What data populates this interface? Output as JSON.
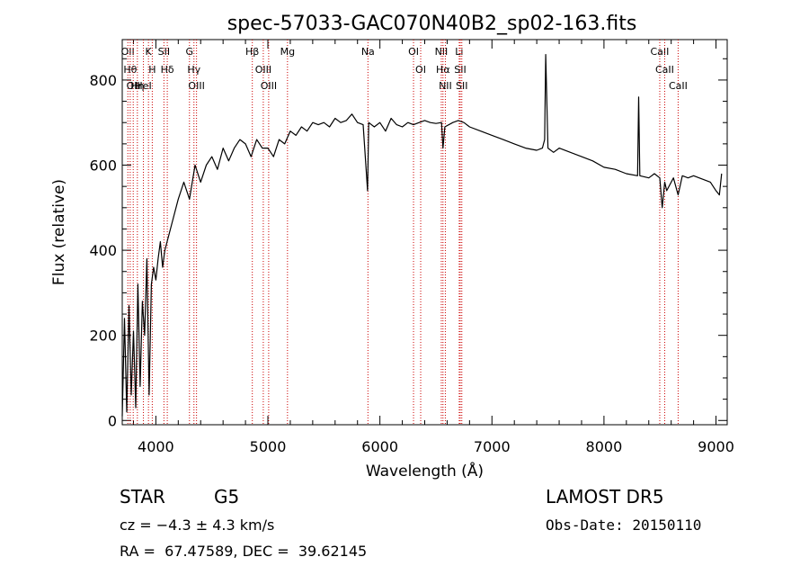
{
  "chart_data": {
    "type": "line",
    "title": "spec-57033-GAC070N40B2_sp02-163.fits",
    "xlabel": "Wavelength (Å)",
    "ylabel": "Flux (relative)",
    "xlim": [
      3700,
      9100
    ],
    "ylim": [
      -10,
      895
    ],
    "xticks": [
      4000,
      5000,
      6000,
      7000,
      8000,
      9000
    ],
    "yticks": [
      0,
      200,
      400,
      600,
      800
    ],
    "grid": false,
    "line_color": "#000000",
    "marker_color": "#cc0000",
    "series": [
      {
        "x": [
          3700,
          3720,
          3740,
          3760,
          3780,
          3800,
          3820,
          3840,
          3860,
          3880,
          3900,
          3920,
          3940,
          3960,
          3980,
          4000,
          4020,
          4040,
          4060,
          4080,
          4100,
          4150,
          4200,
          4250,
          4300,
          4350,
          4400,
          4450,
          4500,
          4550,
          4600,
          4650,
          4700,
          4750,
          4800,
          4850,
          4900,
          4950,
          5000,
          5050,
          5100,
          5150,
          5200,
          5250,
          5300,
          5350,
          5400,
          5450,
          5500,
          5550,
          5600,
          5650,
          5700,
          5750,
          5800,
          5850,
          5890,
          5900,
          5950,
          6000,
          6050,
          6100,
          6150,
          6200,
          6250,
          6300,
          6350,
          6400,
          6450,
          6500,
          6550,
          6563,
          6580,
          6650,
          6700,
          6750,
          6800,
          6900,
          7000,
          7100,
          7200,
          7300,
          7400,
          7450,
          7470,
          7480,
          7500,
          7550,
          7600,
          7700,
          7800,
          7900,
          8000,
          8100,
          8200,
          8300,
          8310,
          8320,
          8400,
          8450,
          8498,
          8520,
          8542,
          8560,
          8620,
          8662,
          8700,
          8750,
          8800,
          8850,
          8900,
          8950,
          9000,
          9030,
          9050
        ],
        "y": [
          10,
          240,
          20,
          270,
          60,
          210,
          30,
          320,
          80,
          280,
          200,
          380,
          60,
          320,
          360,
          330,
          380,
          420,
          360,
          400,
          420,
          470,
          520,
          560,
          520,
          600,
          560,
          600,
          620,
          590,
          640,
          610,
          640,
          660,
          650,
          620,
          660,
          640,
          640,
          620,
          660,
          650,
          680,
          670,
          690,
          680,
          700,
          695,
          700,
          690,
          710,
          700,
          705,
          720,
          700,
          695,
          540,
          700,
          690,
          700,
          680,
          710,
          695,
          690,
          700,
          695,
          700,
          705,
          700,
          698,
          700,
          640,
          690,
          700,
          705,
          700,
          690,
          680,
          670,
          660,
          650,
          640,
          635,
          640,
          660,
          860,
          640,
          630,
          640,
          630,
          620,
          610,
          595,
          590,
          580,
          575,
          760,
          575,
          570,
          580,
          570,
          500,
          560,
          540,
          570,
          530,
          575,
          570,
          575,
          570,
          565,
          560,
          540,
          530,
          580
        ]
      }
    ],
    "lines": [
      {
        "wl": 3750,
        "label": "OII"
      },
      {
        "wl": 3771,
        "label": "Hθ"
      },
      {
        "wl": 3798,
        "label": "OII"
      },
      {
        "wl": 3835,
        "label": "Hη"
      },
      {
        "wl": 3889,
        "label": "HeI"
      },
      {
        "wl": 3934,
        "label": "K"
      },
      {
        "wl": 3968,
        "label": "H"
      },
      {
        "wl": 4072,
        "label": "SII"
      },
      {
        "wl": 4102,
        "label": "Hδ"
      },
      {
        "wl": 4300,
        "label": "G"
      },
      {
        "wl": 4340,
        "label": "Hγ"
      },
      {
        "wl": 4363,
        "label": "OIII"
      },
      {
        "wl": 4861,
        "label": "Hβ"
      },
      {
        "wl": 4959,
        "label": "OIII"
      },
      {
        "wl": 5007,
        "label": "OIII"
      },
      {
        "wl": 5175,
        "label": "Mg"
      },
      {
        "wl": 5893,
        "label": "Na"
      },
      {
        "wl": 6300,
        "label": "OI"
      },
      {
        "wl": 6364,
        "label": "OI"
      },
      {
        "wl": 6548,
        "label": "NII"
      },
      {
        "wl": 6563,
        "label": "Hα"
      },
      {
        "wl": 6584,
        "label": "NII"
      },
      {
        "wl": 6708,
        "label": "Li"
      },
      {
        "wl": 6717,
        "label": "SII"
      },
      {
        "wl": 6731,
        "label": "SII"
      },
      {
        "wl": 8498,
        "label": "CaII"
      },
      {
        "wl": 8542,
        "label": "CaII"
      },
      {
        "wl": 8662,
        "label": "CaII"
      }
    ]
  },
  "info": {
    "object_type": "STAR",
    "subclass": "G5",
    "survey": "LAMOST DR5",
    "cz": "cz = −4.3 ± 4.3 km/s",
    "obs_date": "Obs-Date: 20150110",
    "coords": "RA =  67.47589, DEC =  39.62145"
  }
}
